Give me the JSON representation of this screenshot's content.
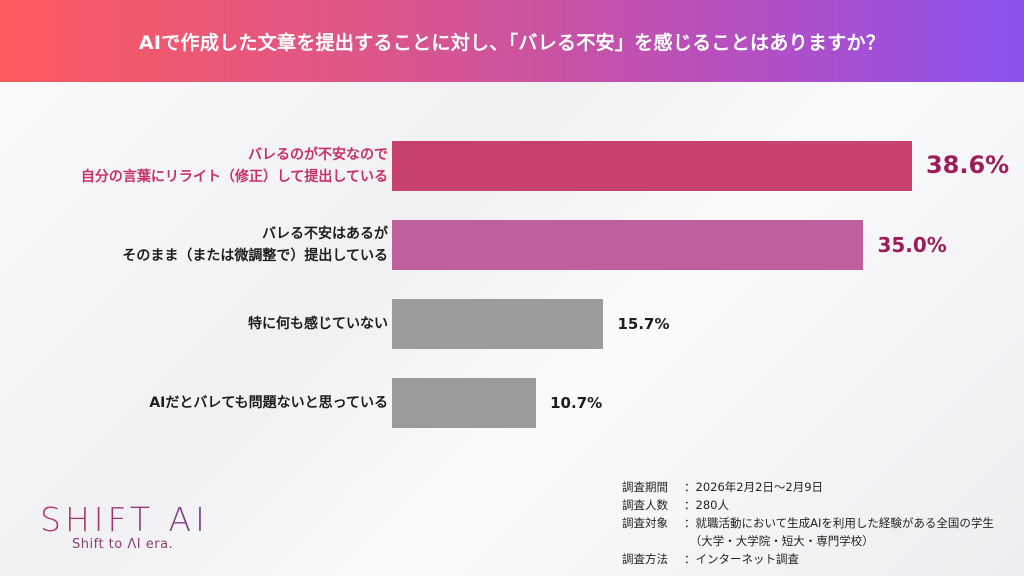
{
  "chart_data": {
    "type": "bar",
    "orientation": "horizontal",
    "title": "AIで作成した文章を提出することに対し、「バレる不安」を感じることはありますか？",
    "categories": [
      [
        "バレるのが不安なので",
        "自分の言葉にリライト（修正）して提出している"
      ],
      [
        "バレる不安はあるが",
        "そのまま（または微調整で）提出している"
      ],
      [
        "特に何も感じていない"
      ],
      [
        "AIだとバレても問題ないと思っている"
      ]
    ],
    "values": [
      38.6,
      35.0,
      15.7,
      10.7
    ],
    "value_labels": [
      "38.6%",
      "35.0%",
      "15.7%",
      "10.7%"
    ],
    "unit": "%",
    "bar_colors": [
      "#c8426e",
      "#bf5f9c",
      "#9b9b9b",
      "#9b9b9b"
    ],
    "label_colors": [
      "#c8306a",
      "#1e1e1e",
      "#1e1e1e",
      "#1e1e1e"
    ],
    "value_colors": [
      "#9b1e5a",
      "#9b1e5a",
      "#1e1e1e",
      "#1e1e1e"
    ],
    "grid": false
  },
  "logo": {
    "main": "SHIFT AI",
    "tagline": "Shift to ΛI era."
  },
  "notes": [
    {
      "key": "調査期間",
      "value": "：2026年2月2日〜2月9日"
    },
    {
      "key": "調査人数",
      "value": "：280人"
    },
    {
      "key": "調査対象",
      "value": "：就職活動において生成AIを利用した経験がある全国の学生"
    },
    {
      "key": "",
      "value": "　（大学・大学院・短大・専門学校）"
    },
    {
      "key": "調査方法",
      "value": "：インターネット調査"
    }
  ]
}
